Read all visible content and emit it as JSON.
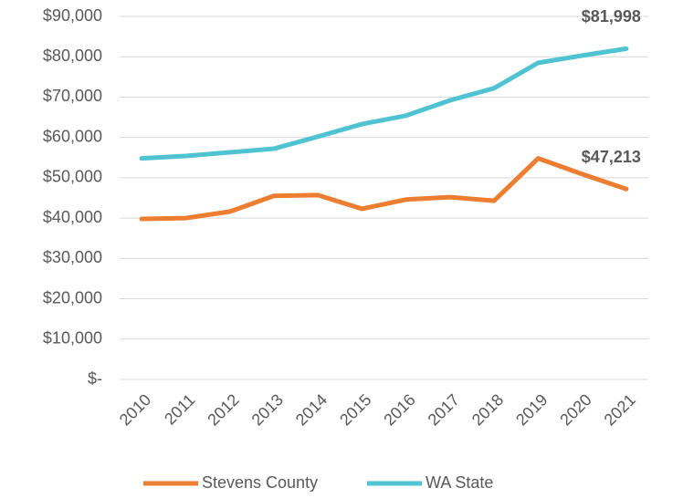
{
  "chart_data": {
    "type": "line",
    "categories": [
      "2010",
      "2011",
      "2012",
      "2013",
      "2014",
      "2015",
      "2016",
      "2017",
      "2018",
      "2019",
      "2020",
      "2021"
    ],
    "series": [
      {
        "name": "Stevens County",
        "color": "#ed7d31",
        "values": [
          39800,
          40000,
          41600,
          45500,
          45700,
          42300,
          44600,
          45200,
          44300,
          54800,
          50900,
          47213
        ],
        "value_labels": [
          null,
          null,
          null,
          null,
          null,
          null,
          null,
          null,
          null,
          null,
          null,
          "$47,213"
        ]
      },
      {
        "name": "WA State",
        "color": "#4fc3d2",
        "values": [
          54800,
          55400,
          56300,
          57200,
          60200,
          63300,
          65400,
          69200,
          72200,
          78500,
          80300,
          81998
        ],
        "value_labels": [
          null,
          null,
          null,
          null,
          null,
          null,
          null,
          null,
          null,
          null,
          null,
          "$81,998"
        ]
      }
    ],
    "ylim": [
      0,
      90000
    ],
    "yticks": [
      {
        "value": 0,
        "label": "$-"
      },
      {
        "value": 10000,
        "label": "$10,000"
      },
      {
        "value": 20000,
        "label": "$20,000"
      },
      {
        "value": 30000,
        "label": "$30,000"
      },
      {
        "value": 40000,
        "label": "$40,000"
      },
      {
        "value": 50000,
        "label": "$50,000"
      },
      {
        "value": 60000,
        "label": "$60,000"
      },
      {
        "value": 70000,
        "label": "$70,000"
      },
      {
        "value": 80000,
        "label": "$80,000"
      },
      {
        "value": 90000,
        "label": "$90,000"
      }
    ],
    "grid": true,
    "legend": "bottom"
  }
}
